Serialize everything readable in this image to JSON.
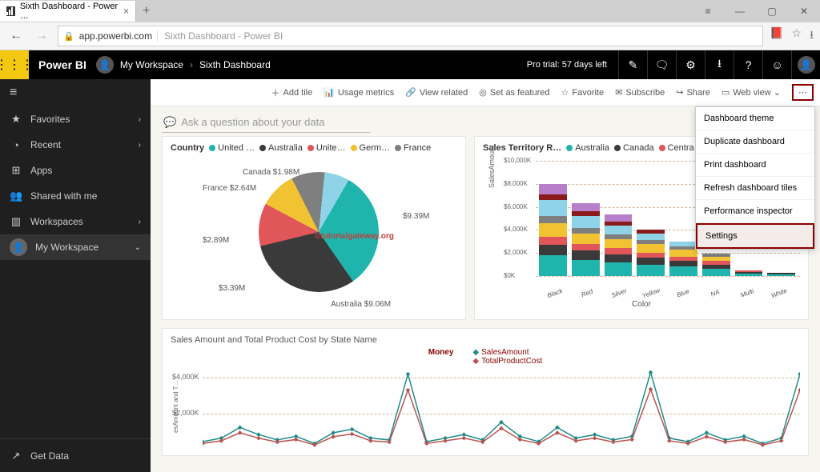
{
  "browser": {
    "tab_title": "Sixth Dashboard - Power …",
    "url_host": "app.powerbi.com",
    "url_title": "Sixth Dashboard - Power BI"
  },
  "header": {
    "brand": "Power BI",
    "breadcrumb": [
      "My Workspace",
      "Sixth Dashboard"
    ],
    "trial": "Pro trial: 57 days left"
  },
  "sidebar": {
    "items": [
      {
        "icon": "★",
        "label": "Favorites",
        "chev": true
      },
      {
        "icon": "◔",
        "label": "Recent",
        "chev": true
      },
      {
        "icon": "⊞",
        "label": "Apps",
        "chev": false
      },
      {
        "icon": "👥",
        "label": "Shared with me",
        "chev": false
      },
      {
        "icon": "▥",
        "label": "Workspaces",
        "chev": true
      }
    ],
    "active": {
      "icon": "👤",
      "label": "My Workspace"
    },
    "footer": {
      "icon": "↗",
      "label": "Get Data"
    }
  },
  "toolbar": {
    "items": [
      {
        "icon": "＋",
        "label": "Add tile"
      },
      {
        "icon": "📊",
        "label": "Usage metrics"
      },
      {
        "icon": "🔗",
        "label": "View related"
      },
      {
        "icon": "◎",
        "label": "Set as featured"
      },
      {
        "icon": "☆",
        "label": "Favorite"
      },
      {
        "icon": "✉",
        "label": "Subscribe"
      },
      {
        "icon": "↪",
        "label": "Share"
      },
      {
        "icon": "▭",
        "label": "Web view ⌄"
      }
    ],
    "more": "⋯"
  },
  "qna_placeholder": "Ask a question about your data",
  "dropdown": {
    "items": [
      "Dashboard theme",
      "Duplicate dashboard",
      "Print dashboard",
      "Refresh dashboard tiles",
      "Performance inspector",
      "Settings"
    ],
    "highlighted": "Settings"
  },
  "pie_chart": {
    "title": "Country",
    "legend": [
      {
        "label": "United …",
        "color": "#1fb5ad"
      },
      {
        "label": "Australia",
        "color": "#3a3a3a"
      },
      {
        "label": "Unite…",
        "color": "#e15759"
      },
      {
        "label": "Germ…",
        "color": "#f1c232"
      },
      {
        "label": "France",
        "color": "#7f7f7f"
      }
    ],
    "slices": [
      {
        "label": "$9.39M",
        "value": 9.39,
        "color": "#1fb5ad"
      },
      {
        "label": "Australia $9.06M",
        "value": 9.06,
        "color": "#3a3a3a"
      },
      {
        "label": "$3.39M",
        "value": 3.39,
        "color": "#e15759"
      },
      {
        "label": "$2.89M",
        "value": 2.89,
        "color": "#f1c232"
      },
      {
        "label": "France $2.64M",
        "value": 2.64,
        "color": "#7f7f7f"
      },
      {
        "label": "Canada $1.98M",
        "value": 1.98,
        "color": "#8fd3e8"
      }
    ],
    "watermark": "©tutorialgateway.org"
  },
  "bar_chart": {
    "title": "Sales Territory R…",
    "legend": [
      {
        "label": "Australia",
        "color": "#1fb5ad"
      },
      {
        "label": "Canada",
        "color": "#3a3a3a"
      },
      {
        "label": "Centra…",
        "color": "#e15759"
      }
    ],
    "y_label": "SalesAmount",
    "y_ticks": [
      "$0K",
      "$2,000K",
      "$4,000K",
      "$6,000K",
      "$8,000K",
      "$10,000K"
    ],
    "y_max": 10000,
    "x_label": "Color",
    "categories": [
      "Black",
      "Red",
      "Silver",
      "Yellow",
      "Blue",
      "NA",
      "Multi",
      "White"
    ],
    "stacks": [
      [
        {
          "v": 1800,
          "c": "#1fb5ad"
        },
        {
          "v": 900,
          "c": "#3a3a3a"
        },
        {
          "v": 700,
          "c": "#e15759"
        },
        {
          "v": 1200,
          "c": "#f1c232"
        },
        {
          "v": 600,
          "c": "#7f7f7f"
        },
        {
          "v": 1400,
          "c": "#8fd3e8"
        },
        {
          "v": 500,
          "c": "#8b1a1a"
        },
        {
          "v": 900,
          "c": "#b77fc9"
        }
      ],
      [
        {
          "v": 1400,
          "c": "#1fb5ad"
        },
        {
          "v": 800,
          "c": "#3a3a3a"
        },
        {
          "v": 600,
          "c": "#e15759"
        },
        {
          "v": 900,
          "c": "#f1c232"
        },
        {
          "v": 500,
          "c": "#7f7f7f"
        },
        {
          "v": 1000,
          "c": "#8fd3e8"
        },
        {
          "v": 400,
          "c": "#8b1a1a"
        },
        {
          "v": 700,
          "c": "#b77fc9"
        }
      ],
      [
        {
          "v": 1200,
          "c": "#1fb5ad"
        },
        {
          "v": 700,
          "c": "#3a3a3a"
        },
        {
          "v": 500,
          "c": "#e15759"
        },
        {
          "v": 800,
          "c": "#f1c232"
        },
        {
          "v": 400,
          "c": "#7f7f7f"
        },
        {
          "v": 800,
          "c": "#8fd3e8"
        },
        {
          "v": 350,
          "c": "#8b1a1a"
        },
        {
          "v": 600,
          "c": "#b77fc9"
        }
      ],
      [
        {
          "v": 1000,
          "c": "#1fb5ad"
        },
        {
          "v": 600,
          "c": "#3a3a3a"
        },
        {
          "v": 450,
          "c": "#e15759"
        },
        {
          "v": 700,
          "c": "#f1c232"
        },
        {
          "v": 350,
          "c": "#7f7f7f"
        },
        {
          "v": 600,
          "c": "#8fd3e8"
        },
        {
          "v": 300,
          "c": "#8b1a1a"
        }
      ],
      [
        {
          "v": 800,
          "c": "#1fb5ad"
        },
        {
          "v": 500,
          "c": "#3a3a3a"
        },
        {
          "v": 400,
          "c": "#e15759"
        },
        {
          "v": 600,
          "c": "#f1c232"
        },
        {
          "v": 300,
          "c": "#7f7f7f"
        },
        {
          "v": 400,
          "c": "#8fd3e8"
        }
      ],
      [
        {
          "v": 600,
          "c": "#1fb5ad"
        },
        {
          "v": 400,
          "c": "#3a3a3a"
        },
        {
          "v": 300,
          "c": "#e15759"
        },
        {
          "v": 400,
          "c": "#f1c232"
        },
        {
          "v": 250,
          "c": "#7f7f7f"
        }
      ],
      [
        {
          "v": 200,
          "c": "#1fb5ad"
        },
        {
          "v": 150,
          "c": "#3a3a3a"
        },
        {
          "v": 120,
          "c": "#e15759"
        }
      ],
      [
        {
          "v": 150,
          "c": "#1fb5ad"
        },
        {
          "v": 100,
          "c": "#3a3a3a"
        }
      ]
    ]
  },
  "line_chart": {
    "title": "Sales Amount and Total Product Cost by State Name",
    "legend_title": "Money",
    "series": [
      {
        "label": "SalesAmount",
        "color": "#1f8a87",
        "marker": "diamond"
      },
      {
        "label": "TotalProductCost",
        "color": "#b85450",
        "marker": "diamond"
      }
    ],
    "y_ticks": [
      "$2,000K",
      "$4,000K"
    ],
    "y_max": 4500,
    "y_label": "esAmount and T…",
    "points_sales": [
      400,
      600,
      1200,
      800,
      500,
      700,
      300,
      900,
      1100,
      600,
      500,
      4200,
      400,
      600,
      800,
      500,
      1500,
      700,
      400,
      1200,
      600,
      800,
      500,
      700,
      4300,
      600,
      400,
      900,
      500,
      700,
      300,
      600,
      4200
    ],
    "points_cost": [
      300,
      450,
      900,
      600,
      380,
      520,
      220,
      680,
      830,
      450,
      380,
      3300,
      300,
      450,
      600,
      380,
      1150,
      520,
      300,
      900,
      450,
      600,
      380,
      520,
      3350,
      450,
      300,
      680,
      380,
      520,
      220,
      450,
      3300
    ]
  }
}
